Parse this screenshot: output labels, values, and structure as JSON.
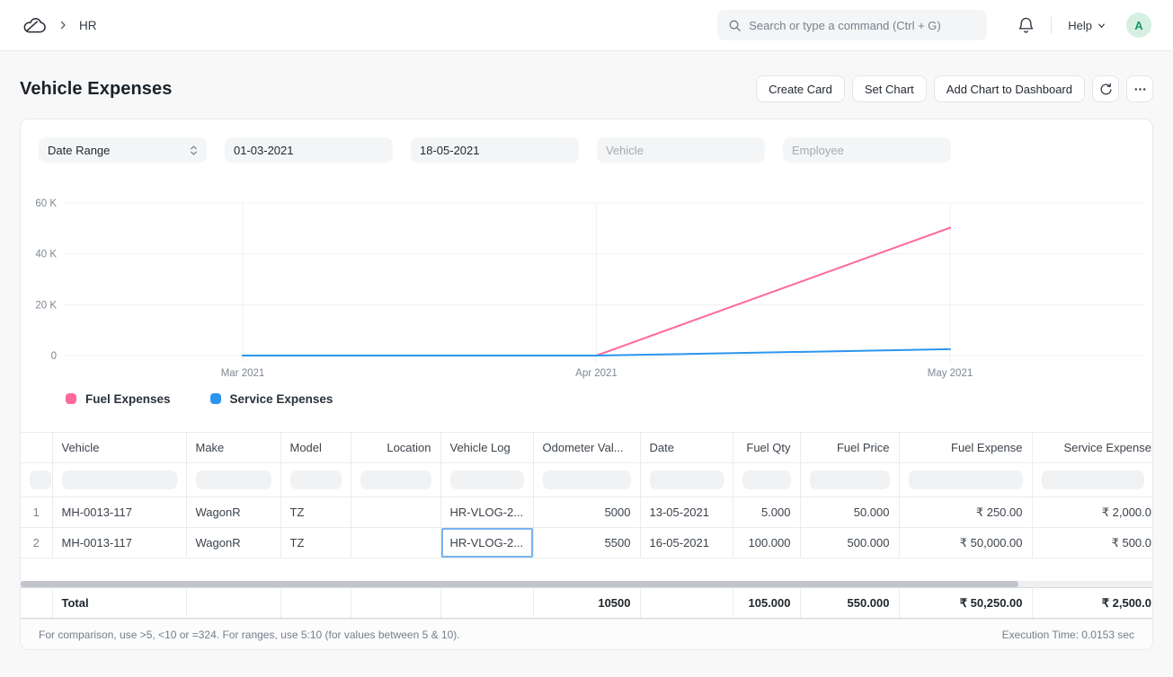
{
  "nav": {
    "breadcrumb": "HR",
    "search_placeholder": "Search or type a command (Ctrl + G)",
    "help_label": "Help",
    "avatar_letter": "A"
  },
  "page": {
    "title": "Vehicle Expenses",
    "actions": [
      "Create Card",
      "Set Chart",
      "Add Chart to Dashboard"
    ]
  },
  "filters": {
    "date_range": "Date Range",
    "from_date": "01-03-2021",
    "to_date": "18-05-2021",
    "vehicle_placeholder": "Vehicle",
    "employee_placeholder": "Employee"
  },
  "chart_data": {
    "type": "line",
    "x": [
      "Mar 2021",
      "Apr 2021",
      "May 2021"
    ],
    "series": [
      {
        "name": "Fuel Expenses",
        "color": "#fd699d",
        "values": [
          0,
          0,
          50250
        ]
      },
      {
        "name": "Service Expenses",
        "color": "#2d95f0",
        "values": [
          0,
          0,
          2500
        ]
      }
    ],
    "yticks": [
      {
        "label": "60 K",
        "value": 60000
      },
      {
        "label": "40 K",
        "value": 40000
      },
      {
        "label": "20 K",
        "value": 20000
      },
      {
        "label": "0",
        "value": 0
      }
    ],
    "ylim": [
      0,
      60000
    ],
    "grid": true,
    "legend_position": "bottom-left"
  },
  "table": {
    "columns": [
      "",
      "Vehicle",
      "Make",
      "Model",
      "Location",
      "Vehicle Log",
      "Odometer Val...",
      "Date",
      "Fuel Qty",
      "Fuel Price",
      "Fuel Expense",
      "Service Expense"
    ],
    "rows": [
      {
        "cells": [
          "1",
          "MH-0013-117",
          "WagonR",
          "TZ",
          "",
          "HR-VLOG-2...",
          "5000",
          "13-05-2021",
          "5.000",
          "50.000",
          "₹ 250.00",
          "₹ 2,000.0"
        ]
      },
      {
        "cells": [
          "2",
          "MH-0013-117",
          "WagonR",
          "TZ",
          "",
          "HR-VLOG-2...",
          "5500",
          "16-05-2021",
          "100.000",
          "500.000",
          "₹ 50,000.00",
          "₹ 500.0"
        ]
      }
    ],
    "total": {
      "cells": [
        "",
        "Total",
        "",
        "",
        "",
        "",
        "10500",
        "",
        "105.000",
        "550.000",
        "₹ 50,250.00",
        "₹ 2,500.0"
      ]
    }
  },
  "status_bar": {
    "hint": "For comparison, use >5, <10 or =324. For ranges, use 5:10 (for values between 5 & 10).",
    "execution_time": "Execution Time: 0.0153 sec"
  }
}
